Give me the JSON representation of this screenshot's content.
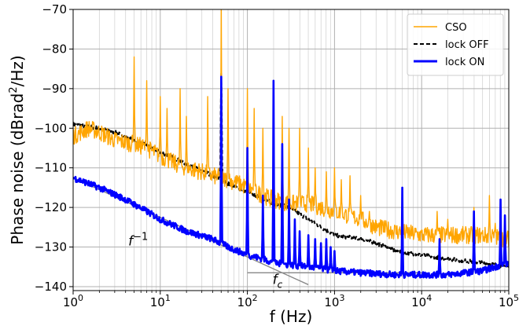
{
  "chart_data": {
    "type": "line",
    "xlabel": "f (Hz)",
    "ylabel_main": "Phase noise (dBrad",
    "ylabel_sup": "2",
    "ylabel_tail": "/Hz)",
    "x_scale": "log",
    "xlim": [
      1,
      100000
    ],
    "ylim": [
      -141,
      -70
    ],
    "grid": true,
    "legend_position": "top-right",
    "x_ticks": [
      {
        "value": 1,
        "base": "10",
        "exp": "0"
      },
      {
        "value": 10,
        "base": "10",
        "exp": "1"
      },
      {
        "value": 100,
        "base": "10",
        "exp": "2"
      },
      {
        "value": 1000,
        "base": "10",
        "exp": "3"
      },
      {
        "value": 10000,
        "base": "10",
        "exp": "4"
      },
      {
        "value": 100000,
        "base": "10",
        "exp": "5"
      }
    ],
    "y_ticks": [
      {
        "value": -70,
        "label": "−70"
      },
      {
        "value": -80,
        "label": "−80"
      },
      {
        "value": -90,
        "label": "−90"
      },
      {
        "value": -100,
        "label": "−100"
      },
      {
        "value": -110,
        "label": "−110"
      },
      {
        "value": -120,
        "label": "−120"
      },
      {
        "value": -130,
        "label": "−130"
      },
      {
        "value": -140,
        "label": "−140"
      }
    ],
    "series": [
      {
        "name": "CSO",
        "color": "#ffa500",
        "style": "solid",
        "base": [
          [
            1,
            -102
          ],
          [
            1.5,
            -100
          ],
          [
            2,
            -101
          ],
          [
            3,
            -103
          ],
          [
            5,
            -104
          ],
          [
            7,
            -105
          ],
          [
            10,
            -107
          ],
          [
            15,
            -109
          ],
          [
            20,
            -110
          ],
          [
            30,
            -111
          ],
          [
            40,
            -112
          ],
          [
            60,
            -113
          ],
          [
            80,
            -114
          ],
          [
            100,
            -115
          ],
          [
            150,
            -117
          ],
          [
            200,
            -118
          ],
          [
            300,
            -119
          ],
          [
            500,
            -119
          ],
          [
            700,
            -120
          ],
          [
            1000,
            -121
          ],
          [
            2000,
            -123
          ],
          [
            3000,
            -125
          ],
          [
            5000,
            -126
          ],
          [
            10000,
            -127
          ],
          [
            20000,
            -127
          ],
          [
            50000,
            -127
          ],
          [
            100000,
            -128
          ]
        ],
        "peaks": [
          [
            5,
            -82
          ],
          [
            7,
            -88
          ],
          [
            10,
            -92
          ],
          [
            12,
            -95
          ],
          [
            17,
            -90
          ],
          [
            20,
            -97
          ],
          [
            35,
            -92
          ],
          [
            50,
            -68
          ],
          [
            60,
            -90
          ],
          [
            100,
            -90
          ],
          [
            120,
            -95
          ],
          [
            150,
            -100
          ],
          [
            200,
            -98
          ],
          [
            250,
            -97
          ],
          [
            300,
            -100
          ],
          [
            400,
            -100
          ],
          [
            500,
            -105
          ],
          [
            600,
            -110
          ],
          [
            800,
            -111
          ],
          [
            1000,
            -110
          ],
          [
            1200,
            -113
          ],
          [
            1500,
            -112
          ],
          [
            2000,
            -117
          ],
          [
            2500,
            -121
          ],
          [
            15000,
            -121
          ],
          [
            20000,
            -123
          ],
          [
            40000,
            -120
          ],
          [
            60000,
            -117
          ],
          [
            70000,
            -124
          ],
          [
            80000,
            -118
          ],
          [
            90000,
            -123
          ]
        ]
      },
      {
        "name": "lock OFF",
        "color": "#000000",
        "style": "dashed",
        "base": [
          [
            1,
            -99
          ],
          [
            2,
            -100
          ],
          [
            3,
            -101
          ],
          [
            5,
            -103
          ],
          [
            10,
            -106
          ],
          [
            20,
            -109
          ],
          [
            40,
            -112
          ],
          [
            60,
            -114
          ],
          [
            100,
            -116
          ],
          [
            200,
            -119
          ],
          [
            300,
            -120
          ],
          [
            500,
            -123
          ],
          [
            700,
            -125
          ],
          [
            1000,
            -127
          ],
          [
            2000,
            -128
          ],
          [
            3000,
            -129
          ],
          [
            5000,
            -131
          ],
          [
            10000,
            -132
          ],
          [
            20000,
            -133
          ],
          [
            50000,
            -134
          ],
          [
            100000,
            -135
          ]
        ],
        "peaks": [
          [
            50,
            -86
          ]
        ]
      },
      {
        "name": "lock ON",
        "color": "#0000ff",
        "style": "solid",
        "base": [
          [
            1,
            -112.5
          ],
          [
            2,
            -115
          ],
          [
            4,
            -118
          ],
          [
            7,
            -121
          ],
          [
            10,
            -123
          ],
          [
            20,
            -126
          ],
          [
            40,
            -128
          ],
          [
            60,
            -130
          ],
          [
            100,
            -132
          ],
          [
            150,
            -133
          ],
          [
            200,
            -134
          ],
          [
            300,
            -134.5
          ],
          [
            500,
            -135
          ],
          [
            1000,
            -136
          ],
          [
            2000,
            -136.5
          ],
          [
            5000,
            -137
          ],
          [
            10000,
            -137
          ],
          [
            20000,
            -137
          ],
          [
            50000,
            -136
          ],
          [
            100000,
            -134
          ]
        ],
        "peaks": [
          [
            50,
            -87
          ],
          [
            100,
            -105
          ],
          [
            150,
            -117
          ],
          [
            200,
            -88
          ],
          [
            250,
            -104
          ],
          [
            300,
            -118
          ],
          [
            350,
            -123
          ],
          [
            400,
            -126
          ],
          [
            500,
            -127
          ],
          [
            600,
            -128
          ],
          [
            700,
            -129
          ],
          [
            800,
            -128
          ],
          [
            900,
            -130
          ],
          [
            1000,
            -131
          ],
          [
            6000,
            -115
          ],
          [
            16000,
            -128
          ],
          [
            40000,
            -121
          ],
          [
            80000,
            -118
          ],
          [
            90000,
            -122
          ]
        ]
      }
    ],
    "fit_line": {
      "label_base": "f",
      "label_exp": "−1",
      "points": [
        [
          1,
          -112.5
        ],
        [
          500,
          -139.5
        ]
      ],
      "label_at": [
        6.5,
        -130
      ]
    },
    "corner_line": {
      "label": "f",
      "label_sub": "c",
      "points": [
        [
          100,
          -136.5
        ],
        [
          10000,
          -136.5
        ]
      ],
      "label_at": [
        230,
        -138.5
      ]
    }
  }
}
